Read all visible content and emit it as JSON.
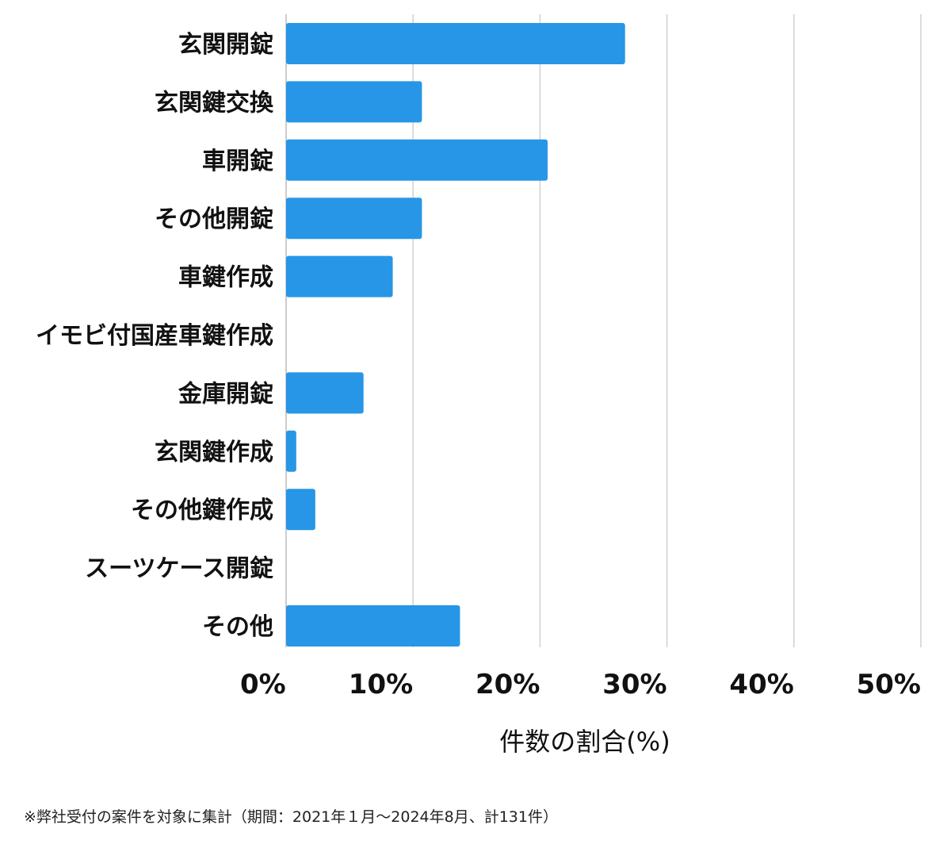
{
  "chart_data": {
    "type": "bar",
    "orientation": "horizontal",
    "categories": [
      "玄関開錠",
      "玄関鍵交換",
      "車開錠",
      "その他開錠",
      "車鍵作成",
      "イモビ付国産車鍵作成",
      "金庫開錠",
      "玄関鍵作成",
      "その他鍵作成",
      "スーツケース開錠",
      "その他"
    ],
    "values": [
      26.7,
      10.7,
      20.6,
      10.7,
      8.4,
      0,
      6.1,
      0.8,
      2.3,
      0,
      13.7
    ],
    "xlim": [
      0,
      50
    ],
    "xticks": [
      0,
      10,
      20,
      30,
      40,
      50
    ],
    "xtick_labels": [
      "0%",
      "10%",
      "20%",
      "30%",
      "40%",
      "50%"
    ],
    "xlabel": "件数の割合(%)",
    "ylabel": "",
    "title": "",
    "grid": true,
    "legend": "none",
    "bar_color": "#2796e6"
  },
  "footnote": "※弊社受付の案件を対象に集計（期間：2021年１月～2024年8月、計131件）"
}
